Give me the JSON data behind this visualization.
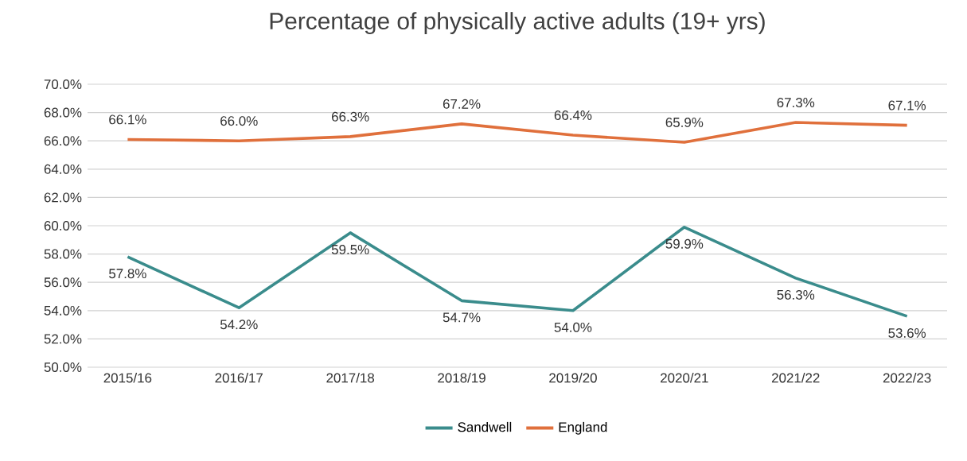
{
  "chart_data": {
    "type": "line",
    "title": "Percentage of physically active adults (19+ yrs)",
    "categories": [
      "2015/16",
      "2016/17",
      "2017/18",
      "2018/19",
      "2019/20",
      "2020/21",
      "2021/22",
      "2022/23"
    ],
    "series": [
      {
        "name": "Sandwell",
        "color": "#3a8c8c",
        "values": [
          57.8,
          54.2,
          59.5,
          54.7,
          54.0,
          59.9,
          56.3,
          53.6
        ],
        "value_labels": [
          "57.8%",
          "54.2%",
          "59.5%",
          "54.7%",
          "54.0%",
          "59.9%",
          "56.3%",
          "53.6%"
        ]
      },
      {
        "name": "England",
        "color": "#e0703c",
        "values": [
          66.1,
          66.0,
          66.3,
          67.2,
          66.4,
          65.9,
          67.3,
          67.1
        ],
        "value_labels": [
          "66.1%",
          "66.0%",
          "66.3%",
          "67.2%",
          "66.4%",
          "65.9%",
          "67.3%",
          "67.1%"
        ]
      }
    ],
    "ylim": [
      50,
      70
    ],
    "yticks": [
      {
        "value": 50,
        "label": "50.0%"
      },
      {
        "value": 52,
        "label": "52.0%"
      },
      {
        "value": 54,
        "label": "54.0%"
      },
      {
        "value": 56,
        "label": "56.0%"
      },
      {
        "value": 58,
        "label": "58.0%"
      },
      {
        "value": 60,
        "label": "60.0%"
      },
      {
        "value": 62,
        "label": "62.0%"
      },
      {
        "value": 64,
        "label": "64.0%"
      },
      {
        "value": 66,
        "label": "66.0%"
      },
      {
        "value": 68,
        "label": "68.0%"
      },
      {
        "value": 70,
        "label": "70.0%"
      }
    ],
    "grid": "y",
    "legend": "bottom",
    "marker": "none",
    "line_style": "solid"
  }
}
